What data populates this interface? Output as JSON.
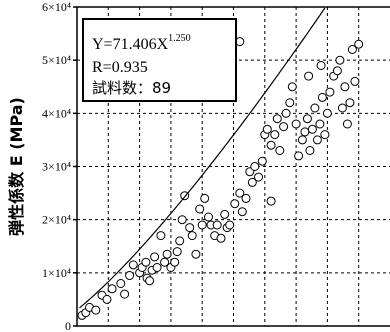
{
  "chart_data": {
    "type": "scatter",
    "title": "",
    "xlabel": "",
    "ylabel": "弾性係数 E (MPa)",
    "ylim": [
      0,
      60000
    ],
    "xlim": [
      20,
      270
    ],
    "yticks": [
      {
        "value": 0,
        "label": "0"
      },
      {
        "value": 10000,
        "label": "1×10⁴"
      },
      {
        "value": 20000,
        "label": "2×10⁴"
      },
      {
        "value": 30000,
        "label": "3×10⁴"
      },
      {
        "value": 40000,
        "label": "4×10⁴"
      },
      {
        "value": 50000,
        "label": "5×10⁴"
      },
      {
        "value": 60000,
        "label": "6×10⁴"
      }
    ],
    "grid": true,
    "annotations": {
      "equation": "Y=71.406X",
      "exponent": "1.250",
      "r": "R=0.935",
      "n": "試料数：89"
    },
    "fit": {
      "a": 71.406,
      "b": 1.25
    },
    "points": [
      [
        24,
        2000
      ],
      [
        27,
        2500
      ],
      [
        30,
        3500
      ],
      [
        35,
        3000
      ],
      [
        40,
        5800
      ],
      [
        44,
        5000
      ],
      [
        48,
        7000
      ],
      [
        55,
        8000
      ],
      [
        58,
        6000
      ],
      [
        62,
        9500
      ],
      [
        65,
        11500
      ],
      [
        70,
        10000
      ],
      [
        72,
        11000
      ],
      [
        75,
        12000
      ],
      [
        76,
        9000
      ],
      [
        78,
        8500
      ],
      [
        80,
        10500
      ],
      [
        82,
        13000
      ],
      [
        84,
        11000
      ],
      [
        87,
        17000
      ],
      [
        90,
        12000
      ],
      [
        92,
        13500
      ],
      [
        95,
        11000
      ],
      [
        98,
        12000
      ],
      [
        100,
        14000
      ],
      [
        102,
        16000
      ],
      [
        104,
        20000
      ],
      [
        106,
        24500
      ],
      [
        110,
        18500
      ],
      [
        112,
        17000
      ],
      [
        115,
        13500
      ],
      [
        118,
        22000
      ],
      [
        120,
        19000
      ],
      [
        122,
        24000
      ],
      [
        125,
        20500
      ],
      [
        127,
        19000
      ],
      [
        130,
        17000
      ],
      [
        132,
        19000
      ],
      [
        135,
        16500
      ],
      [
        138,
        21000
      ],
      [
        140,
        18500
      ],
      [
        142,
        19000
      ],
      [
        146,
        23000
      ],
      [
        150,
        25000
      ],
      [
        152,
        21500
      ],
      [
        155,
        24000
      ],
      [
        158,
        29000
      ],
      [
        160,
        27000
      ],
      [
        162,
        30000
      ],
      [
        165,
        28000
      ],
      [
        168,
        31000
      ],
      [
        170,
        36000
      ],
      [
        172,
        37000
      ],
      [
        175,
        34000
      ],
      [
        178,
        36000
      ],
      [
        180,
        39000
      ],
      [
        182,
        33000
      ],
      [
        185,
        37500
      ],
      [
        187,
        40000
      ],
      [
        190,
        42000
      ],
      [
        192,
        45000
      ],
      [
        195,
        38000
      ],
      [
        197,
        32000
      ],
      [
        200,
        35000
      ],
      [
        202,
        36500
      ],
      [
        204,
        39000
      ],
      [
        205,
        47000
      ],
      [
        206,
        33000
      ],
      [
        208,
        37000
      ],
      [
        210,
        41000
      ],
      [
        212,
        35000
      ],
      [
        214,
        38000
      ],
      [
        215,
        49000
      ],
      [
        216,
        43000
      ],
      [
        218,
        36000
      ],
      [
        220,
        40000
      ],
      [
        222,
        44000
      ],
      [
        225,
        47000
      ],
      [
        228,
        48000
      ],
      [
        230,
        50000
      ],
      [
        232,
        41000
      ],
      [
        234,
        45000
      ],
      [
        236,
        38000
      ],
      [
        238,
        42000
      ],
      [
        240,
        52000
      ],
      [
        242,
        46000
      ],
      [
        245,
        53000
      ],
      [
        175,
        23500
      ],
      [
        150,
        53500
      ]
    ]
  }
}
